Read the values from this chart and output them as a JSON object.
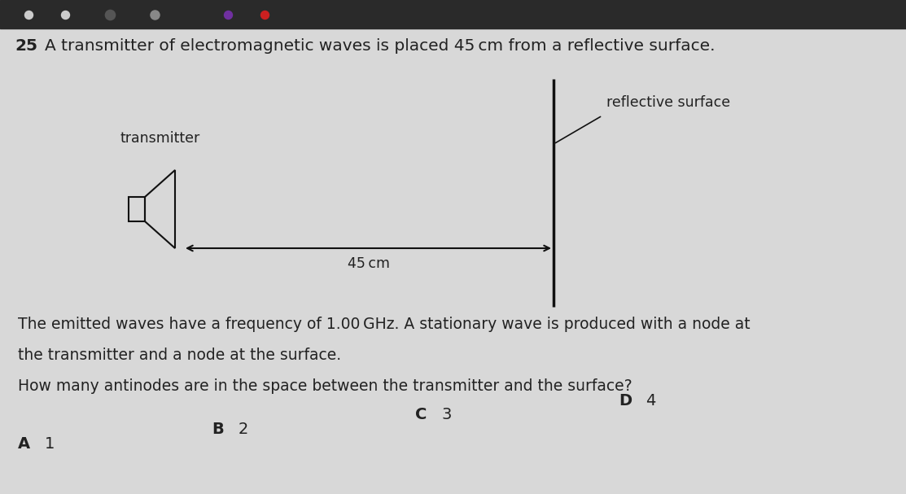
{
  "background_color": "#d8d8d8",
  "toolbar_color": "#2a2a2a",
  "page_color": "#e8e8e8",
  "title_number": "25",
  "title_text": "A transmitter of electromagnetic waves is placed 45 cm from a reflective surface.",
  "transmitter_label": "transmitter",
  "reflective_label": "reflective surface",
  "distance_label": "45 cm",
  "body_text_1": "The emitted waves have a frequency of 1.00 GHz. A stationary wave is produced with a node at",
  "body_text_2": "the transmitter and a node at the surface.",
  "question_text": "How many antinodes are in the space between the transmitter and the surface?",
  "answer_A_letter": "A",
  "answer_A_num": "1",
  "answer_B_letter": "B",
  "answer_B_num": "2",
  "answer_C_letter": "C",
  "answer_C_num": "3",
  "answer_D_letter": "D",
  "answer_D_num": "4",
  "text_color": "#222222",
  "line_color": "#111111",
  "font_size_title": 14.5,
  "font_size_body": 13.5,
  "font_size_answers": 14,
  "font_size_label": 12.5
}
